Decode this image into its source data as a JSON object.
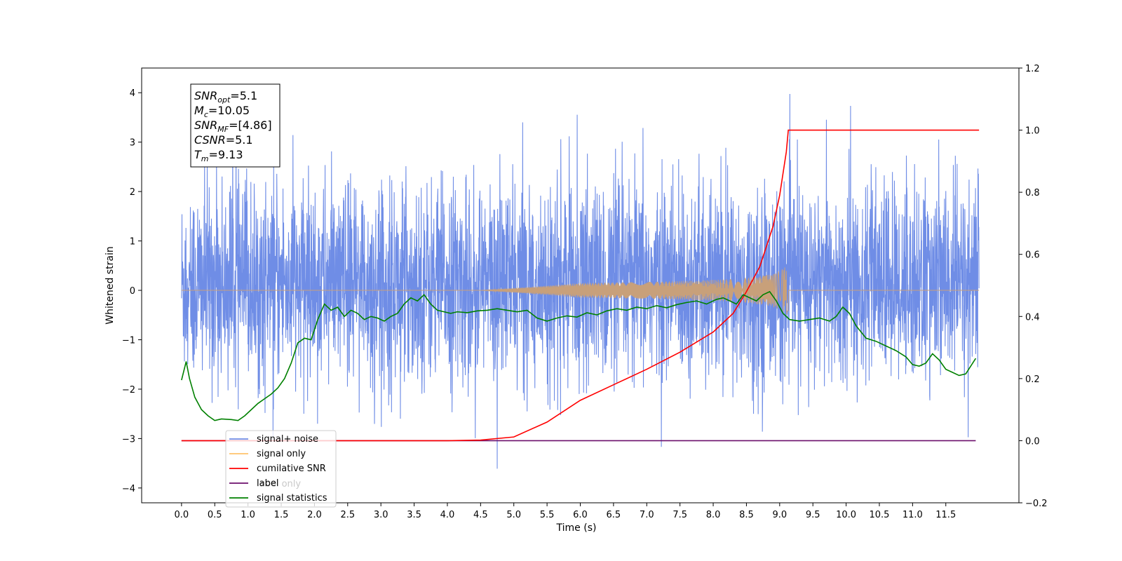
{
  "chart_data": {
    "type": "line",
    "xlabel": "Time (s)",
    "ylabel": "Whitened strain",
    "xlim": [
      -0.6,
      12.6
    ],
    "ylim": [
      -4.3,
      4.5
    ],
    "ylim_right": [
      -0.2,
      1.2
    ],
    "x_ticks": [
      0.0,
      0.5,
      1.0,
      1.5,
      2.0,
      2.5,
      3.0,
      3.5,
      4.0,
      4.5,
      5.0,
      5.5,
      6.0,
      6.5,
      7.0,
      7.5,
      8.0,
      8.5,
      9.0,
      9.5,
      10.0,
      10.5,
      11.0,
      11.5
    ],
    "x_tick_labels": [
      "0.0",
      "0.5",
      "1.0",
      "1.5",
      "2.0",
      "2.5",
      "3.0",
      "3.5",
      "4.0",
      "4.5",
      "5.0",
      "5.5",
      "6.0",
      "6.5",
      "7.0",
      "7.5",
      "8.0",
      "8.5",
      "9.0",
      "9.5",
      "10.0",
      "10.5",
      "11.0",
      "11.5"
    ],
    "y_ticks": [
      4,
      3,
      2,
      1,
      0,
      -1,
      -2,
      -3,
      -4
    ],
    "y_tick_labels": [
      "4",
      "3",
      "2",
      "1",
      "0",
      "−1",
      "−2",
      "−3",
      "−4"
    ],
    "y_ticks_right": [
      1.2,
      1.0,
      0.8,
      0.6,
      0.4,
      0.2,
      0.0,
      -0.2
    ],
    "y_tick_labels_right": [
      "1.2",
      "1.0",
      "0.8",
      "0.6",
      "0.4",
      "0.2",
      "0.0",
      "−0.2"
    ],
    "stats_box": {
      "lines": [
        {
          "base": "SNR",
          "sub": "opt",
          "value": "=5.1"
        },
        {
          "base": "M",
          "sub": "c",
          "value": "=10.05"
        },
        {
          "base": "SNR",
          "sub": "MF",
          "value": "=[4.86]"
        },
        {
          "base": "CSNR",
          "sub": "",
          "value": "=5.1"
        },
        {
          "base": "T",
          "sub": "m",
          "value": "=9.13"
        }
      ]
    },
    "legend": {
      "position": "lower-left",
      "entries": [
        {
          "name": "signal+ noise",
          "color": "#6f8de6"
        },
        {
          "name": "signal only",
          "color": "#ffc36b"
        },
        {
          "name": "cumilative SNR",
          "color": "#ff0000"
        },
        {
          "name": "label",
          "color": "#6b0f6b"
        },
        {
          "name": "signal statistics",
          "color": "#008000"
        }
      ],
      "hidden_text": "label only"
    },
    "series": [
      {
        "name": "signal+ noise",
        "axis": "left",
        "color": "#6f8de6",
        "x_range": [
          0.0,
          12.0
        ],
        "description_values": {
          "approx_min": -3.75,
          "approx_max": 4.15
        }
      },
      {
        "name": "signal only",
        "axis": "left",
        "color": "#c8a07a",
        "chirp_end_time": 9.13,
        "peak_amplitude": 0.6,
        "x_range": [
          0.0,
          12.0
        ]
      },
      {
        "name": "cumilative SNR",
        "axis": "right",
        "color": "#ff0000",
        "x": [
          0.0,
          4.0,
          4.5,
          5.0,
          5.5,
          6.0,
          6.5,
          7.0,
          7.5,
          8.0,
          8.3,
          8.5,
          8.7,
          8.9,
          9.0,
          9.1,
          9.13,
          12.0
        ],
        "values": [
          0.0,
          0.0,
          0.002,
          0.012,
          0.06,
          0.13,
          0.18,
          0.23,
          0.285,
          0.35,
          0.41,
          0.48,
          0.56,
          0.69,
          0.79,
          0.93,
          1.0,
          1.0
        ]
      },
      {
        "name": "label",
        "axis": "right",
        "color": "#6b0f6b",
        "x": [
          0.0,
          11.95
        ],
        "values": [
          0.0,
          0.0
        ]
      },
      {
        "name": "signal statistics",
        "axis": "right",
        "color": "#008000",
        "x": [
          0.0,
          0.07,
          0.12,
          0.2,
          0.3,
          0.4,
          0.5,
          0.6,
          0.75,
          0.85,
          0.95,
          1.05,
          1.15,
          1.25,
          1.35,
          1.45,
          1.55,
          1.65,
          1.75,
          1.85,
          1.95,
          2.05,
          2.15,
          2.25,
          2.35,
          2.45,
          2.55,
          2.65,
          2.75,
          2.85,
          2.95,
          3.05,
          3.15,
          3.25,
          3.35,
          3.45,
          3.55,
          3.65,
          3.75,
          3.85,
          3.95,
          4.05,
          4.15,
          4.3,
          4.45,
          4.6,
          4.75,
          4.9,
          5.05,
          5.2,
          5.35,
          5.5,
          5.65,
          5.8,
          5.95,
          6.1,
          6.25,
          6.4,
          6.55,
          6.7,
          6.85,
          7.0,
          7.15,
          7.3,
          7.45,
          7.6,
          7.75,
          7.9,
          8.05,
          8.15,
          8.25,
          8.35,
          8.45,
          8.55,
          8.65,
          8.75,
          8.85,
          8.95,
          9.05,
          9.15,
          9.3,
          9.45,
          9.6,
          9.75,
          9.85,
          9.95,
          10.05,
          10.15,
          10.3,
          10.45,
          10.6,
          10.75,
          10.9,
          11.0,
          11.1,
          11.2,
          11.3,
          11.4,
          11.5,
          11.6,
          11.7,
          11.8,
          11.95
        ],
        "values": [
          0.195,
          0.255,
          0.2,
          0.14,
          0.1,
          0.08,
          0.065,
          0.07,
          0.068,
          0.065,
          0.08,
          0.1,
          0.12,
          0.135,
          0.15,
          0.17,
          0.2,
          0.25,
          0.315,
          0.33,
          0.325,
          0.39,
          0.44,
          0.42,
          0.43,
          0.4,
          0.42,
          0.41,
          0.39,
          0.4,
          0.395,
          0.385,
          0.4,
          0.41,
          0.44,
          0.46,
          0.45,
          0.47,
          0.44,
          0.42,
          0.415,
          0.41,
          0.415,
          0.412,
          0.418,
          0.42,
          0.425,
          0.42,
          0.415,
          0.42,
          0.395,
          0.385,
          0.395,
          0.402,
          0.398,
          0.412,
          0.405,
          0.418,
          0.425,
          0.42,
          0.43,
          0.425,
          0.435,
          0.428,
          0.438,
          0.445,
          0.45,
          0.44,
          0.455,
          0.46,
          0.45,
          0.44,
          0.47,
          0.46,
          0.45,
          0.47,
          0.48,
          0.45,
          0.41,
          0.39,
          0.385,
          0.39,
          0.395,
          0.385,
          0.4,
          0.43,
          0.41,
          0.37,
          0.33,
          0.32,
          0.305,
          0.29,
          0.27,
          0.245,
          0.24,
          0.25,
          0.28,
          0.26,
          0.23,
          0.22,
          0.21,
          0.215,
          0.265
        ]
      }
    ],
    "grid": false
  }
}
